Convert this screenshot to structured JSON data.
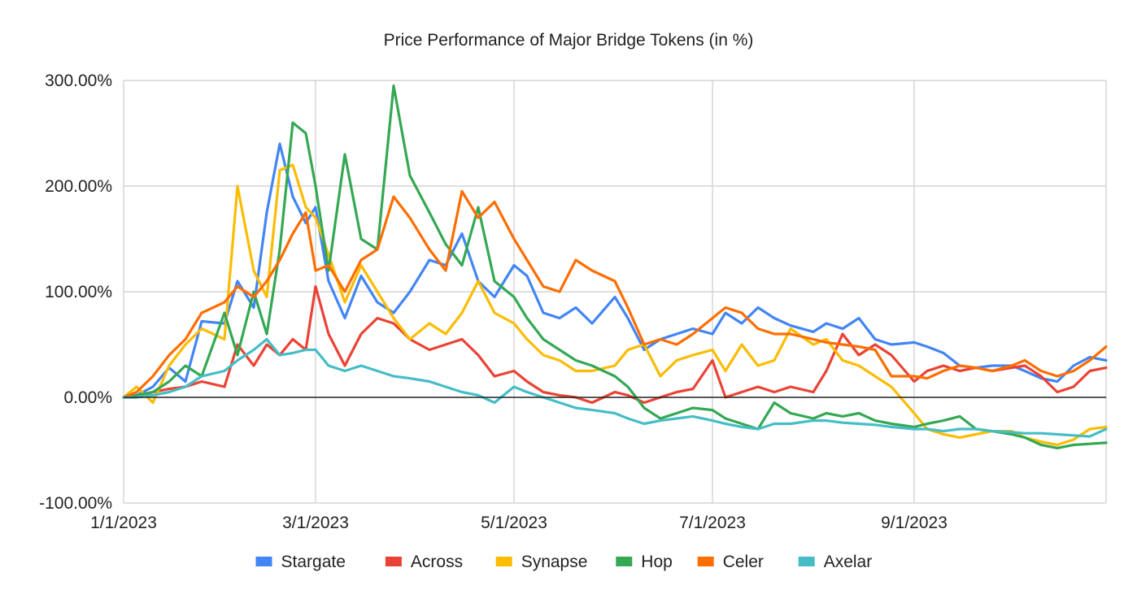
{
  "chart_data": {
    "type": "line",
    "title": "Price Performance of Major Bridge Tokens (in %)",
    "xlabel": "",
    "ylabel": "",
    "x_range": [
      "2023-01-01",
      "2023-10-30"
    ],
    "ylim": [
      -100,
      300
    ],
    "y_ticks": [
      -100,
      0,
      100,
      200,
      300
    ],
    "y_tick_labels": [
      "-100.00%",
      "0.00%",
      "100.00%",
      "200.00%",
      "300.00%"
    ],
    "x_ticks": [
      "2023-01-01",
      "2023-03-01",
      "2023-05-01",
      "2023-07-01",
      "2023-09-01"
    ],
    "x_tick_labels": [
      "1/1/2023",
      "3/1/2023",
      "5/1/2023",
      "7/1/2023",
      "9/1/2023"
    ],
    "grid": true,
    "zero_line": true,
    "legend_position": "bottom",
    "series": [
      {
        "name": "Stargate",
        "color": "#4285f4",
        "x": [
          "2023-01-01",
          "2023-01-05",
          "2023-01-10",
          "2023-01-15",
          "2023-01-20",
          "2023-01-25",
          "2023-02-01",
          "2023-02-05",
          "2023-02-10",
          "2023-02-14",
          "2023-02-18",
          "2023-02-22",
          "2023-02-26",
          "2023-03-01",
          "2023-03-05",
          "2023-03-10",
          "2023-03-15",
          "2023-03-20",
          "2023-03-25",
          "2023-03-30",
          "2023-04-05",
          "2023-04-10",
          "2023-04-15",
          "2023-04-20",
          "2023-04-25",
          "2023-05-01",
          "2023-05-05",
          "2023-05-10",
          "2023-05-15",
          "2023-05-20",
          "2023-05-25",
          "2023-06-01",
          "2023-06-05",
          "2023-06-10",
          "2023-06-15",
          "2023-06-20",
          "2023-06-25",
          "2023-07-01",
          "2023-07-05",
          "2023-07-10",
          "2023-07-15",
          "2023-07-20",
          "2023-07-25",
          "2023-08-01",
          "2023-08-05",
          "2023-08-10",
          "2023-08-15",
          "2023-08-20",
          "2023-08-25",
          "2023-09-01",
          "2023-09-05",
          "2023-09-10",
          "2023-09-15",
          "2023-09-20",
          "2023-09-25",
          "2023-10-01",
          "2023-10-05",
          "2023-10-10",
          "2023-10-15",
          "2023-10-20",
          "2023-10-25",
          "2023-10-30"
        ],
        "values": [
          0,
          2,
          10,
          28,
          15,
          72,
          70,
          110,
          85,
          175,
          240,
          190,
          165,
          180,
          110,
          75,
          115,
          90,
          80,
          100,
          130,
          125,
          155,
          110,
          95,
          125,
          115,
          80,
          75,
          85,
          70,
          95,
          75,
          45,
          55,
          60,
          65,
          60,
          80,
          70,
          85,
          75,
          68,
          62,
          70,
          65,
          75,
          55,
          50,
          52,
          48,
          42,
          30,
          28,
          30,
          30,
          25,
          18,
          15,
          30,
          38,
          35
        ]
      },
      {
        "name": "Across",
        "color": "#ea4335",
        "x": [
          "2023-01-01",
          "2023-01-05",
          "2023-01-10",
          "2023-01-15",
          "2023-01-20",
          "2023-01-25",
          "2023-02-01",
          "2023-02-05",
          "2023-02-10",
          "2023-02-14",
          "2023-02-18",
          "2023-02-22",
          "2023-02-26",
          "2023-03-01",
          "2023-03-05",
          "2023-03-10",
          "2023-03-15",
          "2023-03-20",
          "2023-03-25",
          "2023-03-30",
          "2023-04-05",
          "2023-04-10",
          "2023-04-15",
          "2023-04-20",
          "2023-04-25",
          "2023-05-01",
          "2023-05-05",
          "2023-05-10",
          "2023-05-15",
          "2023-05-20",
          "2023-05-25",
          "2023-06-01",
          "2023-06-05",
          "2023-06-10",
          "2023-06-15",
          "2023-06-20",
          "2023-06-25",
          "2023-07-01",
          "2023-07-05",
          "2023-07-10",
          "2023-07-15",
          "2023-07-20",
          "2023-07-25",
          "2023-08-01",
          "2023-08-05",
          "2023-08-10",
          "2023-08-15",
          "2023-08-20",
          "2023-08-25",
          "2023-09-01",
          "2023-09-05",
          "2023-09-10",
          "2023-09-15",
          "2023-09-20",
          "2023-09-25",
          "2023-10-01",
          "2023-10-05",
          "2023-10-10",
          "2023-10-15",
          "2023-10-20",
          "2023-10-25",
          "2023-10-30"
        ],
        "values": [
          0,
          0,
          5,
          8,
          10,
          15,
          10,
          50,
          30,
          50,
          40,
          55,
          45,
          105,
          60,
          30,
          60,
          75,
          70,
          55,
          45,
          50,
          55,
          40,
          20,
          25,
          15,
          5,
          2,
          0,
          -5,
          5,
          2,
          -5,
          0,
          5,
          8,
          35,
          0,
          5,
          10,
          5,
          10,
          5,
          25,
          60,
          40,
          50,
          40,
          15,
          25,
          30,
          25,
          28,
          25,
          28,
          30,
          20,
          5,
          10,
          25,
          28
        ]
      },
      {
        "name": "Synapse",
        "color": "#fbbc04",
        "x": [
          "2023-01-01",
          "2023-01-05",
          "2023-01-10",
          "2023-01-15",
          "2023-01-20",
          "2023-01-25",
          "2023-02-01",
          "2023-02-05",
          "2023-02-10",
          "2023-02-14",
          "2023-02-18",
          "2023-02-22",
          "2023-02-26",
          "2023-03-01",
          "2023-03-05",
          "2023-03-10",
          "2023-03-15",
          "2023-03-20",
          "2023-03-25",
          "2023-03-30",
          "2023-04-05",
          "2023-04-10",
          "2023-04-15",
          "2023-04-20",
          "2023-04-25",
          "2023-05-01",
          "2023-05-05",
          "2023-05-10",
          "2023-05-15",
          "2023-05-20",
          "2023-05-25",
          "2023-06-01",
          "2023-06-05",
          "2023-06-10",
          "2023-06-15",
          "2023-06-20",
          "2023-06-25",
          "2023-07-01",
          "2023-07-05",
          "2023-07-10",
          "2023-07-15",
          "2023-07-20",
          "2023-07-25",
          "2023-08-01",
          "2023-08-05",
          "2023-08-10",
          "2023-08-15",
          "2023-08-20",
          "2023-08-25",
          "2023-09-01",
          "2023-09-05",
          "2023-09-10",
          "2023-09-15",
          "2023-09-20",
          "2023-09-25",
          "2023-10-01",
          "2023-10-05",
          "2023-10-10",
          "2023-10-15",
          "2023-10-20",
          "2023-10-25",
          "2023-10-30"
        ],
        "values": [
          0,
          10,
          -5,
          30,
          50,
          65,
          55,
          200,
          120,
          95,
          215,
          220,
          180,
          170,
          135,
          90,
          125,
          100,
          75,
          55,
          70,
          60,
          80,
          110,
          80,
          70,
          55,
          40,
          35,
          25,
          25,
          30,
          45,
          50,
          20,
          35,
          40,
          45,
          25,
          50,
          30,
          35,
          65,
          50,
          55,
          35,
          30,
          20,
          10,
          -15,
          -30,
          -35,
          -38,
          -35,
          -32,
          -32,
          -38,
          -42,
          -45,
          -40,
          -30,
          -28
        ]
      },
      {
        "name": "Hop",
        "color": "#34a853",
        "x": [
          "2023-01-01",
          "2023-01-05",
          "2023-01-10",
          "2023-01-15",
          "2023-01-20",
          "2023-01-25",
          "2023-02-01",
          "2023-02-05",
          "2023-02-10",
          "2023-02-14",
          "2023-02-18",
          "2023-02-22",
          "2023-02-26",
          "2023-03-01",
          "2023-03-05",
          "2023-03-10",
          "2023-03-15",
          "2023-03-20",
          "2023-03-25",
          "2023-03-30",
          "2023-04-05",
          "2023-04-10",
          "2023-04-15",
          "2023-04-20",
          "2023-04-25",
          "2023-05-01",
          "2023-05-05",
          "2023-05-10",
          "2023-05-15",
          "2023-05-20",
          "2023-05-25",
          "2023-06-01",
          "2023-06-05",
          "2023-06-10",
          "2023-06-15",
          "2023-06-20",
          "2023-06-25",
          "2023-07-01",
          "2023-07-05",
          "2023-07-10",
          "2023-07-15",
          "2023-07-20",
          "2023-07-25",
          "2023-08-01",
          "2023-08-05",
          "2023-08-10",
          "2023-08-15",
          "2023-08-20",
          "2023-08-25",
          "2023-09-01",
          "2023-09-05",
          "2023-09-10",
          "2023-09-15",
          "2023-09-20",
          "2023-09-25",
          "2023-10-01",
          "2023-10-05",
          "2023-10-10",
          "2023-10-15",
          "2023-10-20",
          "2023-10-25",
          "2023-10-30"
        ],
        "values": [
          0,
          2,
          5,
          15,
          30,
          20,
          80,
          40,
          100,
          60,
          140,
          260,
          250,
          200,
          120,
          230,
          150,
          140,
          295,
          210,
          175,
          145,
          125,
          180,
          110,
          95,
          75,
          55,
          45,
          35,
          30,
          20,
          10,
          -10,
          -20,
          -15,
          -10,
          -12,
          -20,
          -25,
          -30,
          -5,
          -15,
          -20,
          -15,
          -18,
          -15,
          -22,
          -25,
          -28,
          -25,
          -22,
          -18,
          -30,
          -32,
          -35,
          -38,
          -45,
          -48,
          -45,
          -44,
          -43
        ]
      },
      {
        "name": "Celer",
        "color": "#ff6d01",
        "x": [
          "2023-01-01",
          "2023-01-05",
          "2023-01-10",
          "2023-01-15",
          "2023-01-20",
          "2023-01-25",
          "2023-02-01",
          "2023-02-05",
          "2023-02-10",
          "2023-02-14",
          "2023-02-18",
          "2023-02-22",
          "2023-02-26",
          "2023-03-01",
          "2023-03-05",
          "2023-03-10",
          "2023-03-15",
          "2023-03-20",
          "2023-03-25",
          "2023-03-30",
          "2023-04-05",
          "2023-04-10",
          "2023-04-15",
          "2023-04-20",
          "2023-04-25",
          "2023-05-01",
          "2023-05-05",
          "2023-05-10",
          "2023-05-15",
          "2023-05-20",
          "2023-05-25",
          "2023-06-01",
          "2023-06-05",
          "2023-06-10",
          "2023-06-15",
          "2023-06-20",
          "2023-06-25",
          "2023-07-01",
          "2023-07-05",
          "2023-07-10",
          "2023-07-15",
          "2023-07-20",
          "2023-07-25",
          "2023-08-01",
          "2023-08-05",
          "2023-08-10",
          "2023-08-15",
          "2023-08-20",
          "2023-08-25",
          "2023-09-01",
          "2023-09-05",
          "2023-09-10",
          "2023-09-15",
          "2023-09-20",
          "2023-09-25",
          "2023-10-01",
          "2023-10-05",
          "2023-10-10",
          "2023-10-15",
          "2023-10-20",
          "2023-10-25",
          "2023-10-30"
        ],
        "values": [
          0,
          5,
          20,
          40,
          55,
          80,
          90,
          105,
          95,
          110,
          130,
          155,
          175,
          120,
          125,
          100,
          130,
          140,
          190,
          170,
          140,
          120,
          195,
          170,
          185,
          150,
          130,
          105,
          100,
          130,
          120,
          110,
          85,
          50,
          55,
          50,
          60,
          75,
          85,
          80,
          65,
          60,
          60,
          55,
          52,
          50,
          48,
          45,
          20,
          20,
          18,
          25,
          30,
          28,
          25,
          30,
          35,
          25,
          20,
          25,
          35,
          48
        ]
      },
      {
        "name": "Axelar",
        "color": "#46bdc6",
        "x": [
          "2023-01-01",
          "2023-01-05",
          "2023-01-10",
          "2023-01-15",
          "2023-01-20",
          "2023-01-25",
          "2023-02-01",
          "2023-02-05",
          "2023-02-10",
          "2023-02-14",
          "2023-02-18",
          "2023-02-22",
          "2023-02-26",
          "2023-03-01",
          "2023-03-05",
          "2023-03-10",
          "2023-03-15",
          "2023-03-20",
          "2023-03-25",
          "2023-03-30",
          "2023-04-05",
          "2023-04-10",
          "2023-04-15",
          "2023-04-20",
          "2023-04-25",
          "2023-05-01",
          "2023-05-05",
          "2023-05-10",
          "2023-05-15",
          "2023-05-20",
          "2023-05-25",
          "2023-06-01",
          "2023-06-05",
          "2023-06-10",
          "2023-06-15",
          "2023-06-20",
          "2023-06-25",
          "2023-07-01",
          "2023-07-05",
          "2023-07-10",
          "2023-07-15",
          "2023-07-20",
          "2023-07-25",
          "2023-08-01",
          "2023-08-05",
          "2023-08-10",
          "2023-08-15",
          "2023-08-20",
          "2023-08-25",
          "2023-09-01",
          "2023-09-05",
          "2023-09-10",
          "2023-09-15",
          "2023-09-20",
          "2023-09-25",
          "2023-10-01",
          "2023-10-05",
          "2023-10-10",
          "2023-10-15",
          "2023-10-20",
          "2023-10-25",
          "2023-10-30"
        ],
        "values": [
          0,
          0,
          2,
          5,
          10,
          20,
          25,
          35,
          45,
          55,
          40,
          42,
          45,
          45,
          30,
          25,
          30,
          25,
          20,
          18,
          15,
          10,
          5,
          2,
          -5,
          10,
          5,
          0,
          -5,
          -10,
          -12,
          -15,
          -20,
          -25,
          -22,
          -20,
          -18,
          -22,
          -25,
          -28,
          -30,
          -25,
          -25,
          -22,
          -22,
          -24,
          -25,
          -26,
          -28,
          -30,
          -30,
          -32,
          -30,
          -30,
          -32,
          -33,
          -34,
          -34,
          -35,
          -36,
          -37,
          -30
        ]
      }
    ]
  }
}
